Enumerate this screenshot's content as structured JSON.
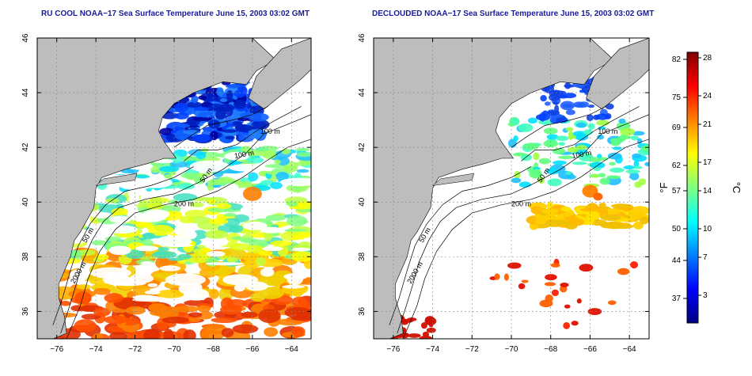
{
  "panels": [
    {
      "title": "RU COOL NOAA−17 Sea Surface Temperature June 15, 2003 03:02 GMT",
      "isobath_labels": [
        "100 m",
        "100 m",
        "50 m",
        "200 m",
        "50 m",
        "2000 m"
      ]
    },
    {
      "title": "DECLOUDED NOAA−17 Sea Surface Temperature June 15, 2003 03:02 GMT",
      "isobath_labels": [
        "100 m",
        "100 m",
        "50 m",
        "200 m",
        "50 m",
        "2000 m"
      ]
    }
  ],
  "axes": {
    "lon_ticks": [
      "−76",
      "−74",
      "−72",
      "−70",
      "−68",
      "−66",
      "−64"
    ],
    "lat_ticks": [
      "36",
      "38",
      "40",
      "42",
      "44",
      "46"
    ]
  },
  "colorbar": {
    "fahrenheit_ticks": [
      "82",
      "75",
      "69",
      "62",
      "57",
      "50",
      "44",
      "37"
    ],
    "celsius_ticks": [
      "28",
      "24",
      "21",
      "17",
      "14",
      "10",
      "7",
      "3"
    ],
    "fahrenheit_unit": "°F",
    "celsius_unit": "°C",
    "colors": [
      "#00007f",
      "#0000ff",
      "#0080ff",
      "#00ffff",
      "#80ff80",
      "#ffff00",
      "#ff8000",
      "#ff0000",
      "#7f0000"
    ]
  },
  "colors": {
    "land": "#bdbdbd",
    "title": "#1a1a9a"
  }
}
